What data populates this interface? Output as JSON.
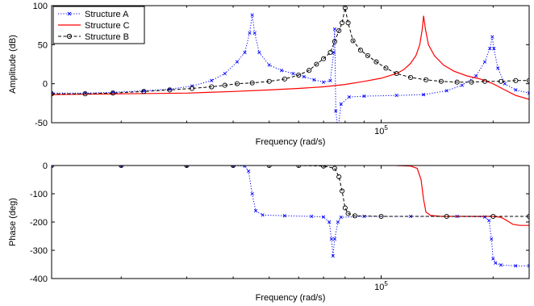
{
  "chart_data": [
    {
      "type": "line",
      "xscale": "log",
      "xlabel": "Frequency (rad/s)",
      "ylabel": "Amplitude (dB)",
      "xlim": [
        13000,
        250000
      ],
      "ylim": [
        -50,
        100
      ],
      "yticks": [
        -50,
        0,
        50,
        100
      ],
      "xticks": [
        {
          "value": 100000,
          "base": "10",
          "exponent": "5"
        }
      ],
      "grid": false,
      "legend": "top-left",
      "series": [
        {
          "name": "Structure A",
          "color": "#0000ff",
          "line": "dotted",
          "marker": "x",
          "points": [
            [
              13000,
              -12
            ],
            [
              16000,
              -12
            ],
            [
              19000,
              -11
            ],
            [
              23000,
              -9
            ],
            [
              27000,
              -7
            ],
            [
              31000,
              -3
            ],
            [
              35000,
              4
            ],
            [
              38000,
              13
            ],
            [
              41000,
              28
            ],
            [
              43000,
              40
            ],
            [
              44300,
              65
            ],
            [
              45000,
              88
            ],
            [
              45700,
              65
            ],
            [
              47000,
              40
            ],
            [
              50000,
              24
            ],
            [
              54000,
              17
            ],
            [
              58000,
              13
            ],
            [
              62000,
              9
            ],
            [
              66000,
              5
            ],
            [
              70000,
              2
            ],
            [
              73000,
              4
            ],
            [
              74500,
              40
            ],
            [
              75000,
              70
            ],
            [
              75500,
              -35
            ],
            [
              76500,
              -60
            ],
            [
              78000,
              -26
            ],
            [
              82000,
              -17
            ],
            [
              90000,
              -16
            ],
            [
              110000,
              -15
            ],
            [
              130000,
              -14
            ],
            [
              150000,
              -9
            ],
            [
              165000,
              -2
            ],
            [
              180000,
              10
            ],
            [
              190000,
              28
            ],
            [
              196000,
              45
            ],
            [
              199000,
              60
            ],
            [
              201000,
              45
            ],
            [
              206000,
              20
            ],
            [
              215000,
              0
            ],
            [
              230000,
              -8
            ],
            [
              250000,
              -12
            ]
          ]
        },
        {
          "name": "Structure C",
          "color": "#ff0000",
          "line": "solid",
          "marker": "none",
          "points": [
            [
              13000,
              -14
            ],
            [
              20000,
              -13
            ],
            [
              30000,
              -12
            ],
            [
              40000,
              -10
            ],
            [
              50000,
              -8
            ],
            [
              60000,
              -6
            ],
            [
              70000,
              -4
            ],
            [
              80000,
              -1
            ],
            [
              90000,
              3
            ],
            [
              100000,
              7
            ],
            [
              110000,
              13
            ],
            [
              115000,
              18
            ],
            [
              120000,
              26
            ],
            [
              124000,
              36
            ],
            [
              127000,
              50
            ],
            [
              129000,
              70
            ],
            [
              130000,
              87
            ],
            [
              131500,
              70
            ],
            [
              134000,
              50
            ],
            [
              139000,
              36
            ],
            [
              147000,
              24
            ],
            [
              157000,
              16
            ],
            [
              170000,
              10
            ],
            [
              185000,
              6
            ],
            [
              200000,
              0
            ],
            [
              215000,
              -8
            ],
            [
              230000,
              -15
            ],
            [
              250000,
              -20
            ]
          ]
        },
        {
          "name": "Structure B",
          "color": "#000000",
          "line": "dashed",
          "marker": "o",
          "points": [
            [
              13000,
              -13
            ],
            [
              16000,
              -13
            ],
            [
              19000,
              -12
            ],
            [
              23000,
              -10
            ],
            [
              27000,
              -8
            ],
            [
              31000,
              -6
            ],
            [
              35000,
              -4
            ],
            [
              38000,
              -2
            ],
            [
              41000,
              0
            ],
            [
              45000,
              1
            ],
            [
              50000,
              3
            ],
            [
              55000,
              6
            ],
            [
              60000,
              11
            ],
            [
              64000,
              17
            ],
            [
              67000,
              25
            ],
            [
              70000,
              32
            ],
            [
              73000,
              40
            ],
            [
              75000,
              54
            ],
            [
              77000,
              68
            ],
            [
              78500,
              78
            ],
            [
              80000,
              97
            ],
            [
              81500,
              78
            ],
            [
              84000,
              55
            ],
            [
              88000,
              43
            ],
            [
              92000,
              36
            ],
            [
              97000,
              28
            ],
            [
              103000,
              20
            ],
            [
              110000,
              13
            ],
            [
              120000,
              8
            ],
            [
              132000,
              5
            ],
            [
              145000,
              3
            ],
            [
              160000,
              2
            ],
            [
              175000,
              2
            ],
            [
              190000,
              3
            ],
            [
              210000,
              3
            ],
            [
              230000,
              4
            ],
            [
              250000,
              4
            ]
          ]
        }
      ]
    },
    {
      "type": "line",
      "xscale": "log",
      "xlabel": "Frequency (rad/s)",
      "ylabel": "Phase (deg)",
      "xlim": [
        13000,
        250000
      ],
      "ylim": [
        -400,
        0
      ],
      "yticks": [
        -400,
        -300,
        -200,
        -100,
        0
      ],
      "xticks": [
        {
          "value": 100000,
          "base": "10",
          "exponent": "5"
        }
      ],
      "grid": false,
      "series": [
        {
          "name": "Structure A",
          "color": "#0000ff",
          "line": "dotted",
          "marker": "x",
          "points": [
            [
              13000,
              0
            ],
            [
              20000,
              0
            ],
            [
              30000,
              0
            ],
            [
              40000,
              0
            ],
            [
              43000,
              -2
            ],
            [
              44000,
              -20
            ],
            [
              45000,
              -100
            ],
            [
              46000,
              -160
            ],
            [
              48000,
              -175
            ],
            [
              55000,
              -178
            ],
            [
              65000,
              -180
            ],
            [
              70000,
              -182
            ],
            [
              72500,
              -200
            ],
            [
              73500,
              -260
            ],
            [
              74200,
              -320
            ],
            [
              75000,
              -260
            ],
            [
              76500,
              -200
            ],
            [
              78000,
              -183
            ],
            [
              90000,
              -180
            ],
            [
              120000,
              -180
            ],
            [
              160000,
              -180
            ],
            [
              190000,
              -182
            ],
            [
              195000,
              -195
            ],
            [
              198000,
              -260
            ],
            [
              200000,
              -330
            ],
            [
              203000,
              -345
            ],
            [
              210000,
              -352
            ],
            [
              230000,
              -355
            ],
            [
              250000,
              -355
            ]
          ]
        },
        {
          "name": "Structure C",
          "color": "#ff0000",
          "line": "solid",
          "marker": "none",
          "points": [
            [
              110000,
              0
            ],
            [
              120000,
              -2
            ],
            [
              125000,
              -10
            ],
            [
              128000,
              -50
            ],
            [
              130000,
              -120
            ],
            [
              132000,
              -165
            ],
            [
              136000,
              -177
            ],
            [
              145000,
              -180
            ],
            [
              170000,
              -180
            ],
            [
              200000,
              -180
            ],
            [
              210000,
              -183
            ],
            [
              218000,
              -195
            ],
            [
              226000,
              -208
            ],
            [
              236000,
              -212
            ],
            [
              250000,
              -212
            ]
          ]
        },
        {
          "name": "Structure B",
          "color": "#000000",
          "line": "dashed",
          "marker": "o",
          "points": [
            [
              13000,
              0
            ],
            [
              20000,
              0
            ],
            [
              30000,
              0
            ],
            [
              40000,
              0
            ],
            [
              50000,
              0
            ],
            [
              60000,
              0
            ],
            [
              70000,
              -2
            ],
            [
              75000,
              -10
            ],
            [
              77000,
              -40
            ],
            [
              78500,
              -90
            ],
            [
              80000,
              -150
            ],
            [
              81500,
              -170
            ],
            [
              85000,
              -178
            ],
            [
              100000,
              -180
            ],
            [
              150000,
              -180
            ],
            [
              200000,
              -180
            ],
            [
              250000,
              -180
            ]
          ]
        }
      ]
    }
  ]
}
